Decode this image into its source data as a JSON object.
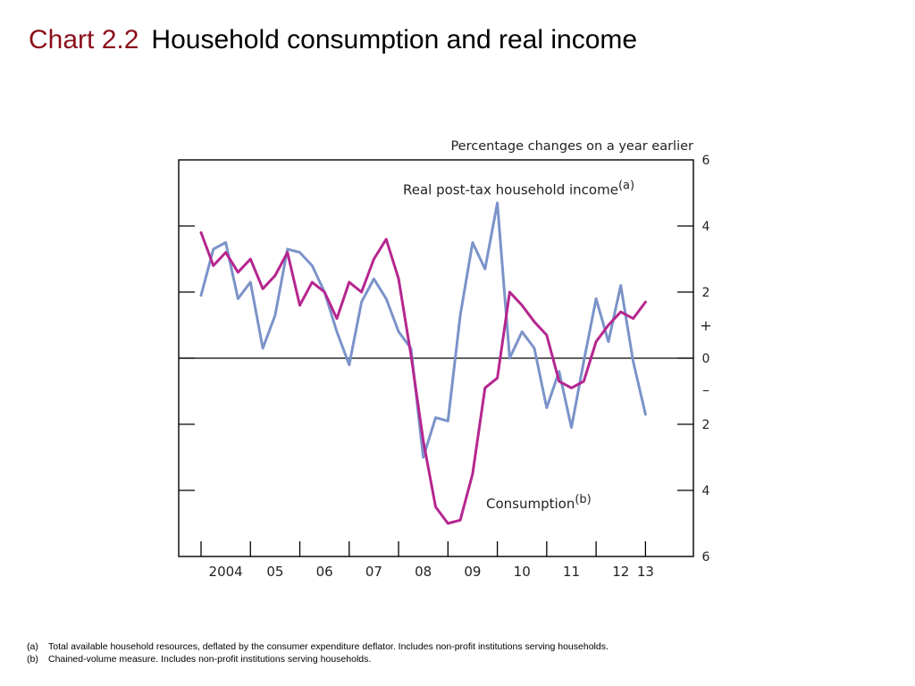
{
  "header": {
    "chart_number": "Chart 2.2",
    "title": "Household consumption and real income"
  },
  "chart_data": {
    "type": "line",
    "title": "Household consumption and real income",
    "axis_note": "Percentage changes on a year earlier",
    "x_tick_labels": [
      "2004",
      "05",
      "06",
      "07",
      "08",
      "09",
      "10",
      "11",
      "12",
      "13"
    ],
    "x_tick_years": [
      2004,
      2005,
      2006,
      2007,
      2008,
      2009,
      2010,
      2011,
      2012,
      2013
    ],
    "xlim": [
      2003.75,
      2013.25
    ],
    "ylim": [
      -6,
      6
    ],
    "y_tick_values": [
      6,
      4,
      2,
      0,
      -2,
      -4,
      -6
    ],
    "y_tick_labels": [
      "6",
      "4",
      "2",
      "0",
      "2",
      "4",
      "6"
    ],
    "sign_plus": "+",
    "sign_minus": "–",
    "grid": false,
    "series": [
      {
        "name": "Consumption",
        "footnote_ref": "(b)",
        "color": "#b5268f",
        "points": [
          [
            2003.75,
            3.8
          ],
          [
            2004.0,
            2.8
          ],
          [
            2004.25,
            3.2
          ],
          [
            2004.5,
            2.6
          ],
          [
            2004.75,
            3.0
          ],
          [
            2005.0,
            2.1
          ],
          [
            2005.25,
            2.5
          ],
          [
            2005.5,
            3.2
          ],
          [
            2005.75,
            1.6
          ],
          [
            2006.0,
            2.3
          ],
          [
            2006.25,
            2.0
          ],
          [
            2006.5,
            1.2
          ],
          [
            2006.75,
            2.3
          ],
          [
            2007.0,
            2.0
          ],
          [
            2007.25,
            3.0
          ],
          [
            2007.5,
            3.6
          ],
          [
            2007.75,
            2.4
          ],
          [
            2008.0,
            0.1
          ],
          [
            2008.25,
            -2.5
          ],
          [
            2008.5,
            -4.5
          ],
          [
            2008.75,
            -5.0
          ],
          [
            2009.0,
            -4.9
          ],
          [
            2009.25,
            -3.5
          ],
          [
            2009.5,
            -0.9
          ],
          [
            2009.75,
            -0.6
          ],
          [
            2010.0,
            2.0
          ],
          [
            2010.25,
            1.6
          ],
          [
            2010.5,
            1.1
          ],
          [
            2010.75,
            0.7
          ],
          [
            2011.0,
            -0.7
          ],
          [
            2011.25,
            -0.9
          ],
          [
            2011.5,
            -0.7
          ],
          [
            2011.75,
            0.5
          ],
          [
            2012.0,
            1.0
          ],
          [
            2012.25,
            1.4
          ],
          [
            2012.5,
            1.2
          ],
          [
            2012.75,
            1.7
          ]
        ]
      },
      {
        "name": "Real post-tax household income",
        "footnote_ref": "(a)",
        "color": "#7b93c9",
        "points": [
          [
            2003.75,
            1.9
          ],
          [
            2004.0,
            3.3
          ],
          [
            2004.25,
            3.5
          ],
          [
            2004.5,
            1.8
          ],
          [
            2004.75,
            2.3
          ],
          [
            2005.0,
            0.3
          ],
          [
            2005.25,
            1.3
          ],
          [
            2005.5,
            3.3
          ],
          [
            2005.75,
            3.2
          ],
          [
            2006.0,
            2.8
          ],
          [
            2006.25,
            2.0
          ],
          [
            2006.5,
            0.8
          ],
          [
            2006.75,
            -0.2
          ],
          [
            2007.0,
            1.7
          ],
          [
            2007.25,
            2.4
          ],
          [
            2007.5,
            1.8
          ],
          [
            2007.75,
            0.8
          ],
          [
            2008.0,
            0.3
          ],
          [
            2008.25,
            -3.0
          ],
          [
            2008.5,
            -1.8
          ],
          [
            2008.75,
            -1.9
          ],
          [
            2009.0,
            1.3
          ],
          [
            2009.25,
            3.5
          ],
          [
            2009.5,
            2.7
          ],
          [
            2009.75,
            4.7
          ],
          [
            2010.0,
            0.0
          ],
          [
            2010.25,
            0.8
          ],
          [
            2010.5,
            0.3
          ],
          [
            2010.75,
            -1.5
          ],
          [
            2011.0,
            -0.4
          ],
          [
            2011.25,
            -2.1
          ],
          [
            2011.5,
            -0.1
          ],
          [
            2011.75,
            1.8
          ],
          [
            2012.0,
            0.5
          ],
          [
            2012.25,
            2.2
          ],
          [
            2012.5,
            -0.1
          ],
          [
            2012.75,
            -1.7
          ]
        ]
      }
    ]
  },
  "footnotes": [
    {
      "key": "(a)",
      "text": "Total available household resources, deflated by the consumer expenditure deflator.  Includes non-profit institutions serving households."
    },
    {
      "key": "(b)",
      "text": "Chained-volume measure.  Includes non-profit institutions serving households."
    }
  ]
}
